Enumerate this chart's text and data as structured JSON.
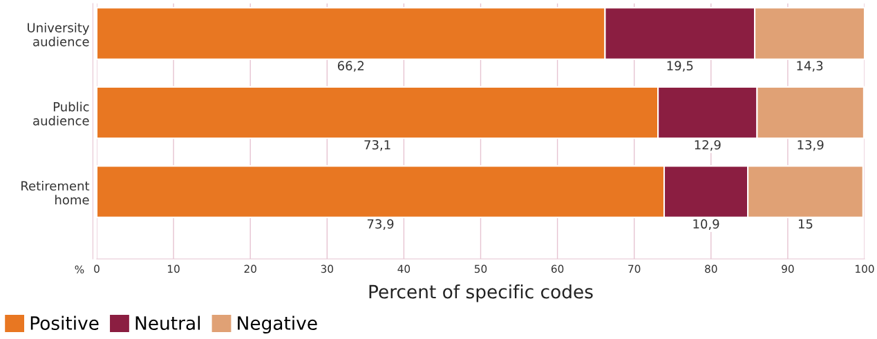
{
  "chart_data": {
    "type": "bar",
    "orientation": "horizontal",
    "stacked": true,
    "categories": [
      "University\naudience",
      "Public\naudience",
      "Retirement\nhome"
    ],
    "series": [
      {
        "name": "Positive",
        "color": "#e87722",
        "values": [
          66.2,
          73.1,
          73.9
        ],
        "value_labels": [
          "66,2",
          "73,1",
          "73,9"
        ]
      },
      {
        "name": "Neutral",
        "color": "#8b1e41",
        "values": [
          19.5,
          12.9,
          10.9
        ],
        "value_labels": [
          "19,5",
          "12,9",
          "10,9"
        ]
      },
      {
        "name": "Negative",
        "color": "#e0a175",
        "values": [
          14.3,
          13.9,
          15
        ],
        "value_labels": [
          "14,3",
          "13,9",
          "15"
        ]
      }
    ],
    "xlim": [
      0,
      100
    ],
    "xticks": [
      0,
      10,
      20,
      30,
      40,
      50,
      60,
      70,
      80,
      90,
      100
    ],
    "xlabel": "Percent of specific codes",
    "annotations": [
      "%"
    ],
    "grid": "x",
    "legend": "bottom left"
  }
}
